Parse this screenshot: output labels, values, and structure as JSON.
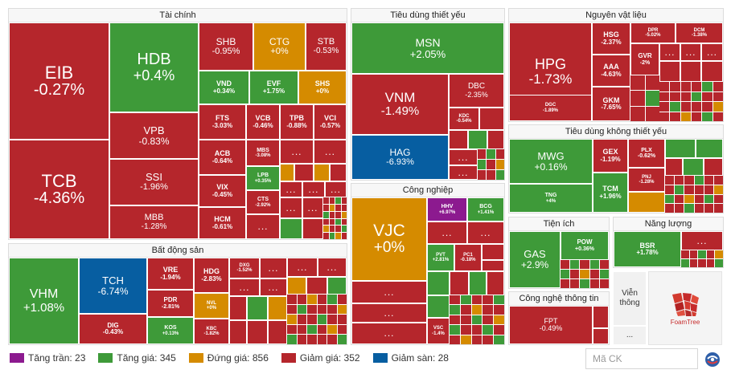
{
  "sectors": {
    "tai_chinh": "Tài chính",
    "tieu_dung_thiet_yeu": "Tiêu dùng thiết yếu",
    "nguyen_vat_lieu": "Nguyên vật liệu",
    "tieu_dung_khong_thiet_yeu": "Tiêu dùng không thiết yếu",
    "cong_nghiep": "Công nghiệp",
    "bat_dong_san": "Bất động sản",
    "tien_ich": "Tiện ích",
    "nang_luong": "Năng lượng",
    "cong_nghe_thong_tin": "Công nghệ thông tin"
  },
  "tiles": {
    "EIB": {
      "sym": "EIB",
      "chg": "-0.27%"
    },
    "TCB": {
      "sym": "TCB",
      "chg": "-4.36%"
    },
    "HDB": {
      "sym": "HDB",
      "chg": "+0.4%"
    },
    "VPB": {
      "sym": "VPB",
      "chg": "-0.83%"
    },
    "SSI": {
      "sym": "SSI",
      "chg": "-1.96%"
    },
    "MBB": {
      "sym": "MBB",
      "chg": "-1.28%"
    },
    "SHB": {
      "sym": "SHB",
      "chg": "-0.95%"
    },
    "CTG": {
      "sym": "CTG",
      "chg": "+0%"
    },
    "STB": {
      "sym": "STB",
      "chg": "-0.53%"
    },
    "VND": {
      "sym": "VND",
      "chg": "+0.34%"
    },
    "EVF": {
      "sym": "EVF",
      "chg": "+1.75%"
    },
    "SHS": {
      "sym": "SHS",
      "chg": "+0%"
    },
    "FTS": {
      "sym": "FTS",
      "chg": "-3.03%"
    },
    "VCB": {
      "sym": "VCB",
      "chg": "-0.46%"
    },
    "TPB": {
      "sym": "TPB",
      "chg": "-0.88%"
    },
    "VCI": {
      "sym": "VCI",
      "chg": "-0.57%"
    },
    "ACB": {
      "sym": "ACB",
      "chg": "-0.64%"
    },
    "MBS": {
      "sym": "MBS",
      "chg": "-3.08%"
    },
    "VIX": {
      "sym": "VIX",
      "chg": "-0.45%"
    },
    "LPB": {
      "sym": "LPB",
      "chg": "+0.35%"
    },
    "HCM": {
      "sym": "HCM",
      "chg": "-0.61%"
    },
    "CTS": {
      "sym": "CTS",
      "chg": "-2.92%"
    },
    "MSN": {
      "sym": "MSN",
      "chg": "+2.05%"
    },
    "VNM": {
      "sym": "VNM",
      "chg": "-1.49%"
    },
    "DBC": {
      "sym": "DBC",
      "chg": "-2.35%"
    },
    "KDC": {
      "sym": "KDC",
      "chg": "-0.54%"
    },
    "HAG": {
      "sym": "HAG",
      "chg": "-6.93%"
    },
    "HPG": {
      "sym": "HPG",
      "chg": "-1.73%"
    },
    "HSG": {
      "sym": "HSG",
      "chg": "-2.37%"
    },
    "DPR": {
      "sym": "DPR",
      "chg": "-5.02%"
    },
    "DCM": {
      "sym": "DCM",
      "chg": "-1.38%"
    },
    "AAA": {
      "sym": "AAA",
      "chg": "-4.63%"
    },
    "GVR": {
      "sym": "GVR",
      "chg": "-2%"
    },
    "DGC": {
      "sym": "DGC",
      "chg": "-1.89%"
    },
    "GKM": {
      "sym": "GKM",
      "chg": "-7.65%"
    },
    "MWG": {
      "sym": "MWG",
      "chg": "+0.16%"
    },
    "GEX": {
      "sym": "GEX",
      "chg": "-1.19%"
    },
    "PLX": {
      "sym": "PLX",
      "chg": "-0.62%"
    },
    "PNJ": {
      "sym": "PNJ",
      "chg": "-1.28%"
    },
    "TNG": {
      "sym": "TNG",
      "chg": "+4%"
    },
    "TCM": {
      "sym": "TCM",
      "chg": "+1.96%"
    },
    "VJC": {
      "sym": "VJC",
      "chg": "+0%"
    },
    "HHV": {
      "sym": "HHV",
      "chg": "+6.97%"
    },
    "BCG": {
      "sym": "BCG",
      "chg": "+1.41%"
    },
    "PVT": {
      "sym": "PVT",
      "chg": "+2.81%"
    },
    "PC1": {
      "sym": "PC1",
      "chg": "-0.18%"
    },
    "VSC": {
      "sym": "VSC",
      "chg": "-1.4%"
    },
    "VHM": {
      "sym": "VHM",
      "chg": "+1.08%"
    },
    "TCH": {
      "sym": "TCH",
      "chg": "-6.74%"
    },
    "DIG": {
      "sym": "DIG",
      "chg": "-0.43%"
    },
    "VRE": {
      "sym": "VRE",
      "chg": "-1.94%"
    },
    "PDR": {
      "sym": "PDR",
      "chg": "-2.81%"
    },
    "KOS": {
      "sym": "KOS",
      "chg": "+0.13%"
    },
    "HDG": {
      "sym": "HDG",
      "chg": "-2.83%"
    },
    "NVL": {
      "sym": "NVL",
      "chg": "+0%"
    },
    "KBC": {
      "sym": "KBC",
      "chg": "-1.82%"
    },
    "DXG": {
      "sym": "DXG",
      "chg": "-1.52%"
    },
    "GAS": {
      "sym": "GAS",
      "chg": "+2.9%"
    },
    "POW": {
      "sym": "POW",
      "chg": "+0.36%"
    },
    "BSR": {
      "sym": "BSR",
      "chg": "+1.78%"
    },
    "FPT": {
      "sym": "FPT",
      "chg": "-0.49%"
    }
  },
  "dots_label": "...",
  "vien_thong": "Viễn thông",
  "foamtree": "FoamTree",
  "legend": [
    {
      "label": "Tăng trần: 23",
      "color": "#8c1a8f"
    },
    {
      "label": "Tăng giá: 345",
      "color": "#3e9a39"
    },
    {
      "label": "Đứng giá: 856",
      "color": "#d58b00"
    },
    {
      "label": "Giảm giá: 352",
      "color": "#b5262c"
    },
    {
      "label": "Giảm sàn: 28",
      "color": "#075ea1"
    }
  ],
  "search": {
    "placeholder": "Mã CK"
  },
  "colors": {
    "up": "#3e9a39",
    "down": "#b5262c",
    "ref": "#d58b00",
    "floor": "#075ea1",
    "ceil": "#8c1a8f"
  }
}
